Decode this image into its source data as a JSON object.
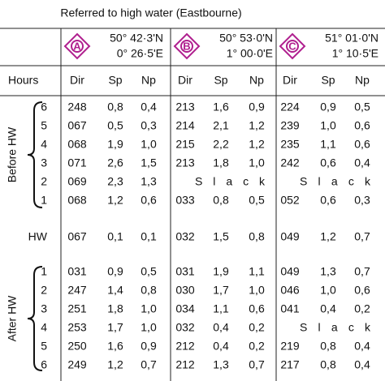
{
  "title": "Referred to high water (Eastbourne)",
  "stations": [
    {
      "letter": "A",
      "lat": "50° 42·3'N",
      "lon": "0° 26·5'E"
    },
    {
      "letter": "B",
      "lat": "50° 53·0'N",
      "lon": "1° 00·0'E"
    },
    {
      "letter": "C",
      "lat": "51° 01·0'N",
      "lon": "1° 10·5'E"
    }
  ],
  "hours_header": "Hours",
  "columns": [
    "Dir",
    "Sp",
    "Np",
    "Dir",
    "Sp",
    "Np",
    "Dir",
    "Sp",
    "Np"
  ],
  "before": {
    "label": "Before HW",
    "rows": [
      {
        "hour": "6",
        "cells": [
          [
            "248",
            "0,8",
            "0,4"
          ],
          [
            "213",
            "1,6",
            "0,9"
          ],
          [
            "224",
            "0,9",
            "0,5"
          ]
        ]
      },
      {
        "hour": "5",
        "cells": [
          [
            "067",
            "0,5",
            "0,3"
          ],
          [
            "214",
            "2,1",
            "1,2"
          ],
          [
            "239",
            "1,0",
            "0,6"
          ]
        ]
      },
      {
        "hour": "4",
        "cells": [
          [
            "068",
            "1,9",
            "1,0"
          ],
          [
            "215",
            "2,2",
            "1,2"
          ],
          [
            "235",
            "1,1",
            "0,6"
          ]
        ]
      },
      {
        "hour": "3",
        "cells": [
          [
            "071",
            "2,6",
            "1,5"
          ],
          [
            "213",
            "1,8",
            "1,0"
          ],
          [
            "242",
            "0,6",
            "0,4"
          ]
        ]
      },
      {
        "hour": "2",
        "cells": [
          [
            "069",
            "2,3",
            "1,3"
          ],
          "Slack",
          "Slack"
        ]
      },
      {
        "hour": "1",
        "cells": [
          [
            "068",
            "1,2",
            "0,6"
          ],
          [
            "033",
            "0,8",
            "0,5"
          ],
          [
            "052",
            "0,6",
            "0,3"
          ]
        ]
      }
    ]
  },
  "hw": {
    "label": "HW",
    "cells": [
      [
        "067",
        "0,1",
        "0,1"
      ],
      [
        "032",
        "1,5",
        "0,8"
      ],
      [
        "049",
        "1,2",
        "0,7"
      ]
    ]
  },
  "after": {
    "label": "After HW",
    "rows": [
      {
        "hour": "1",
        "cells": [
          [
            "031",
            "0,9",
            "0,5"
          ],
          [
            "031",
            "1,9",
            "1,1"
          ],
          [
            "049",
            "1,3",
            "0,7"
          ]
        ]
      },
      {
        "hour": "2",
        "cells": [
          [
            "247",
            "1,4",
            "0,8"
          ],
          [
            "030",
            "1,7",
            "1,0"
          ],
          [
            "046",
            "1,0",
            "0,6"
          ]
        ]
      },
      {
        "hour": "3",
        "cells": [
          [
            "251",
            "1,8",
            "1,0"
          ],
          [
            "034",
            "1,1",
            "0,6"
          ],
          [
            "041",
            "0,4",
            "0,2"
          ]
        ]
      },
      {
        "hour": "4",
        "cells": [
          [
            "253",
            "1,7",
            "1,0"
          ],
          [
            "032",
            "0,4",
            "0,2"
          ],
          "Slack"
        ]
      },
      {
        "hour": "5",
        "cells": [
          [
            "250",
            "1,6",
            "0,9"
          ],
          [
            "212",
            "0,4",
            "0,2"
          ],
          [
            "219",
            "0,8",
            "0,4"
          ]
        ]
      },
      {
        "hour": "6",
        "cells": [
          [
            "249",
            "1,2",
            "0,7"
          ],
          [
            "212",
            "1,3",
            "0,7"
          ],
          [
            "217",
            "0,8",
            "0,4"
          ]
        ]
      }
    ]
  }
}
